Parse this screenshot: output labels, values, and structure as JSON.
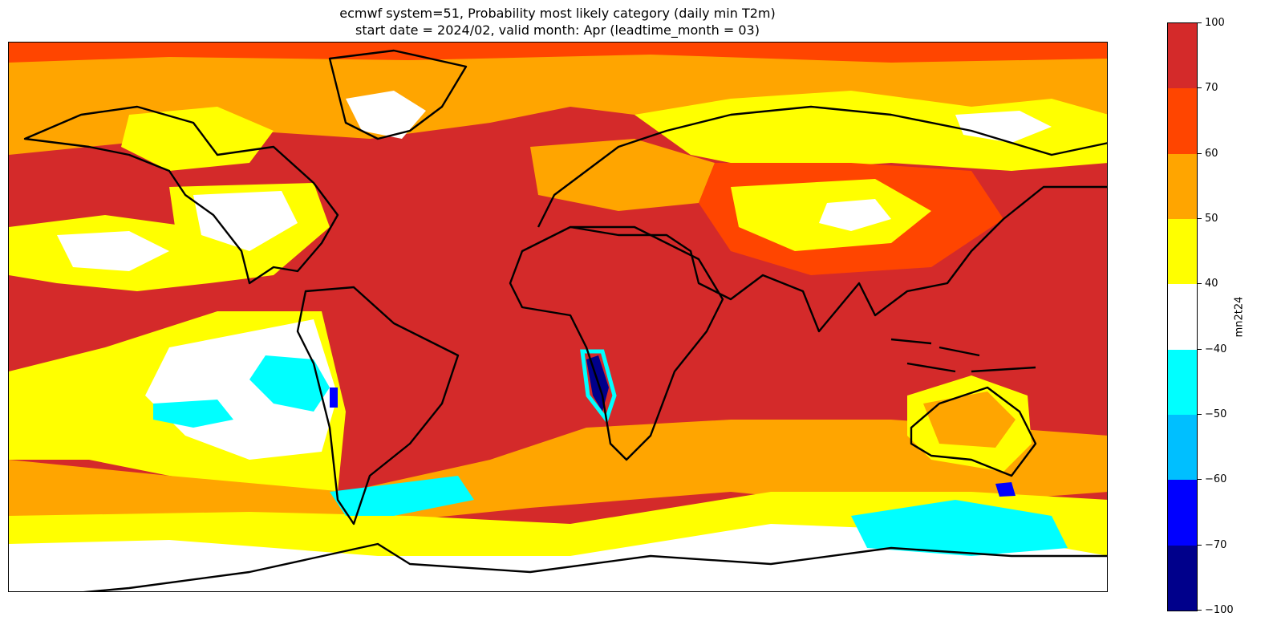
{
  "figure": {
    "title_line1": "ecmwf system=51, Probability most likely category (daily min T2m)",
    "title_line2": "start date = 2024/02, valid month: Apr (leadtime_month = 03)"
  },
  "colorbar": {
    "label": "mn2t24",
    "ticks": [
      "100",
      "70",
      "60",
      "50",
      "40",
      "−40",
      "−50",
      "−60",
      "−70",
      "−100"
    ],
    "bins": [
      {
        "range": "70 to 100",
        "color": "#d42a2a"
      },
      {
        "range": "60 to 70",
        "color": "#ff4500"
      },
      {
        "range": "50 to 60",
        "color": "#ffa500"
      },
      {
        "range": "40 to 50",
        "color": "#ffff00"
      },
      {
        "range": "-40 to 40",
        "color": "#ffffff"
      },
      {
        "range": "-50 to -40",
        "color": "#00ffff"
      },
      {
        "range": "-60 to -50",
        "color": "#00bfff"
      },
      {
        "range": "-70 to -60",
        "color": "#0000ff"
      },
      {
        "range": "-100 to -70",
        "color": "#00008b"
      }
    ]
  },
  "map": {
    "projection": "plate-carree",
    "extent_lon": [
      -180,
      180
    ],
    "extent_lat": [
      -90,
      90
    ],
    "coastline_color": "#000000",
    "ocean_background_category": "70 to 100"
  }
}
